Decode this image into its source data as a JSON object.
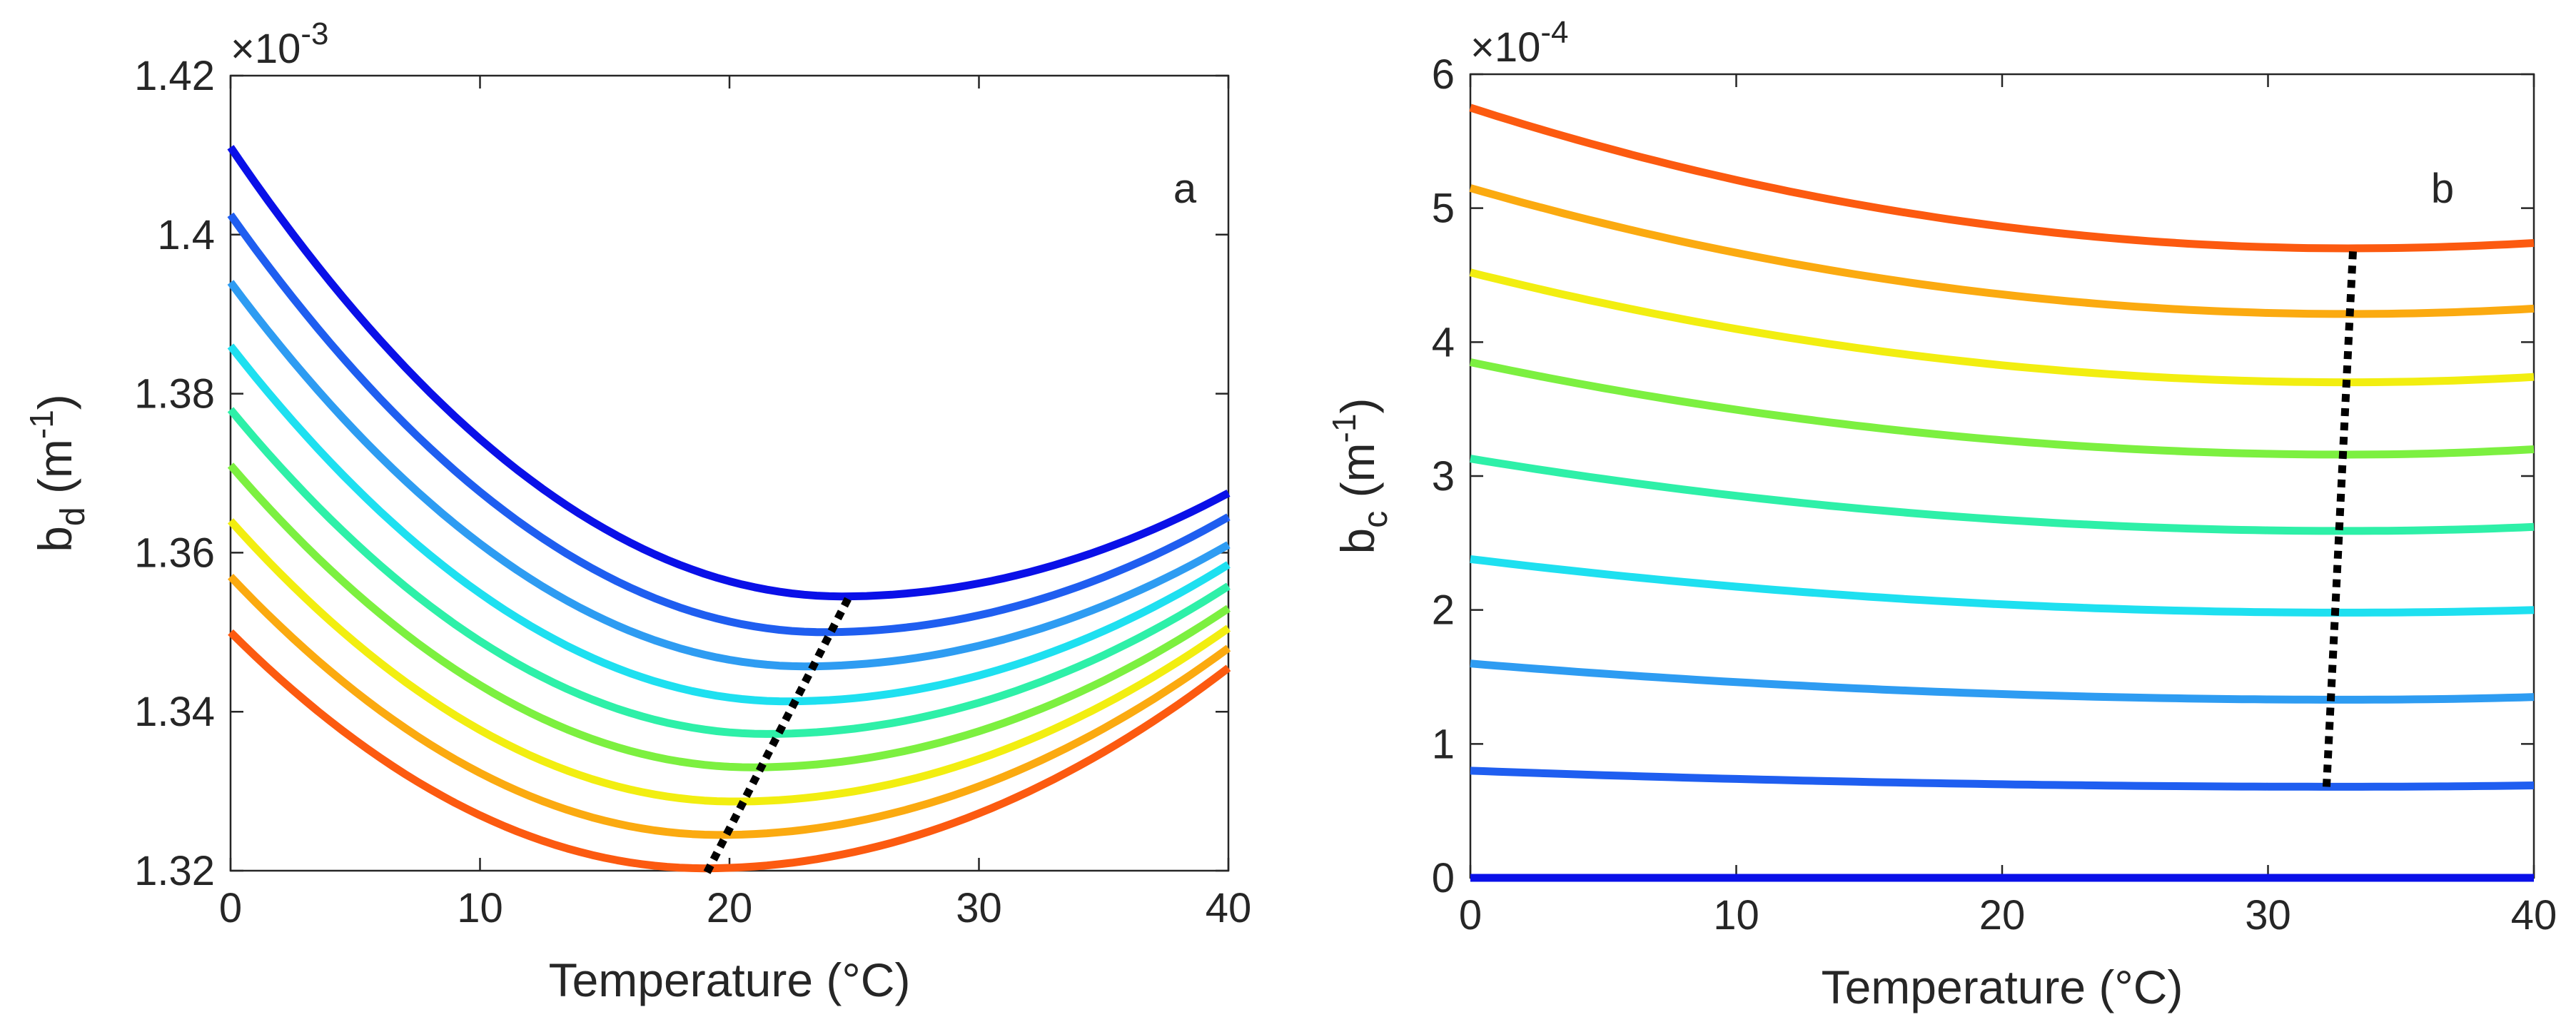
{
  "chart_data": [
    {
      "type": "line",
      "panel_label": "a",
      "xlabel": "Temperature (°C)",
      "ylabel": {
        "base": "b",
        "sub": "d",
        "unit_open": " (m",
        "unit_sup": "-1",
        "unit_close": ")"
      },
      "y_multiplier": {
        "prefix": "×10",
        "exponent": "-3"
      },
      "xlim": [
        0,
        40
      ],
      "ylim": [
        1.32,
        1.42
      ],
      "xticks": [
        0,
        10,
        20,
        30,
        40
      ],
      "xtick_labels": [
        "0",
        "10",
        "20",
        "30",
        "40"
      ],
      "yticks": [
        1.32,
        1.34,
        1.36,
        1.38,
        1.4,
        1.42
      ],
      "ytick_labels": [
        "1.32",
        "1.34",
        "1.36",
        "1.38",
        "1.4",
        "1.42"
      ],
      "grid": false,
      "series": [
        {
          "name": "curve-1",
          "color": "#0a10e8",
          "start": 1.411,
          "min_x": 24.5,
          "min_y": 1.3545,
          "end": 1.3675
        },
        {
          "name": "curve-2",
          "color": "#1f5ef0",
          "start": 1.4025,
          "min_x": 23.8,
          "min_y": 1.35,
          "end": 1.3645
        },
        {
          "name": "curve-3",
          "color": "#2e9cf2",
          "start": 1.394,
          "min_x": 23.0,
          "min_y": 1.3457,
          "end": 1.361
        },
        {
          "name": "curve-4",
          "color": "#1ee0f0",
          "start": 1.386,
          "min_x": 22.3,
          "min_y": 1.3413,
          "end": 1.3585
        },
        {
          "name": "curve-5",
          "color": "#2ef0a8",
          "start": 1.378,
          "min_x": 21.5,
          "min_y": 1.3372,
          "end": 1.3558
        },
        {
          "name": "curve-6",
          "color": "#7cf040",
          "start": 1.371,
          "min_x": 20.9,
          "min_y": 1.333,
          "end": 1.353
        },
        {
          "name": "curve-7",
          "color": "#f2ee10",
          "start": 1.364,
          "min_x": 20.2,
          "min_y": 1.3287,
          "end": 1.3505
        },
        {
          "name": "curve-8",
          "color": "#fbaa10",
          "start": 1.357,
          "min_x": 19.6,
          "min_y": 1.3245,
          "end": 1.348
        },
        {
          "name": "curve-9",
          "color": "#fc5a10",
          "start": 1.35,
          "min_x": 19.0,
          "min_y": 1.3203,
          "end": 1.3455
        }
      ],
      "minimum_line": {
        "style": "dotted",
        "color": "#000000",
        "x": [
          19.1,
          24.8
        ],
        "y": [
          1.3198,
          1.3545
        ]
      }
    },
    {
      "type": "line",
      "panel_label": "b",
      "xlabel": "Temperature (°C)",
      "ylabel": {
        "base": "b",
        "sub": "c",
        "unit_open": " (m",
        "unit_sup": "-1",
        "unit_close": ")"
      },
      "y_multiplier": {
        "prefix": "×10",
        "exponent": "-4"
      },
      "xlim": [
        0,
        40
      ],
      "ylim": [
        0,
        6
      ],
      "xticks": [
        0,
        10,
        20,
        30,
        40
      ],
      "xtick_labels": [
        "0",
        "10",
        "20",
        "30",
        "40"
      ],
      "yticks": [
        0,
        1,
        2,
        3,
        4,
        5,
        6
      ],
      "ytick_labels": [
        "0",
        "1",
        "2",
        "3",
        "4",
        "5",
        "6"
      ],
      "grid": false,
      "series": [
        {
          "name": "curve-1",
          "color": "#0a10e8",
          "start": 0.0,
          "min_x": 33.0,
          "min_y": 0.0,
          "end": 0.0
        },
        {
          "name": "curve-2",
          "color": "#1f5ef0",
          "start": 0.8,
          "min_x": 33.0,
          "min_y": 0.68,
          "end": 0.69
        },
        {
          "name": "curve-3",
          "color": "#2e9cf2",
          "start": 1.6,
          "min_x": 33.0,
          "min_y": 1.33,
          "end": 1.35
        },
        {
          "name": "curve-4",
          "color": "#1ee0f0",
          "start": 2.38,
          "min_x": 33.0,
          "min_y": 1.98,
          "end": 2.0
        },
        {
          "name": "curve-5",
          "color": "#2ef0a8",
          "start": 3.13,
          "min_x": 33.0,
          "min_y": 2.59,
          "end": 2.62
        },
        {
          "name": "curve-6",
          "color": "#7cf040",
          "start": 3.85,
          "min_x": 33.0,
          "min_y": 3.16,
          "end": 3.2
        },
        {
          "name": "curve-7",
          "color": "#f2ee10",
          "start": 4.52,
          "min_x": 33.0,
          "min_y": 3.7,
          "end": 3.74
        },
        {
          "name": "curve-8",
          "color": "#fbaa10",
          "start": 5.15,
          "min_x": 33.0,
          "min_y": 4.21,
          "end": 4.25
        },
        {
          "name": "curve-9",
          "color": "#fc5a10",
          "start": 5.75,
          "min_x": 33.0,
          "min_y": 4.7,
          "end": 4.74
        }
      ],
      "minimum_line": {
        "style": "dotted",
        "color": "#000000",
        "x": [
          32.2,
          33.2
        ],
        "y": [
          0.68,
          4.7
        ]
      }
    }
  ]
}
